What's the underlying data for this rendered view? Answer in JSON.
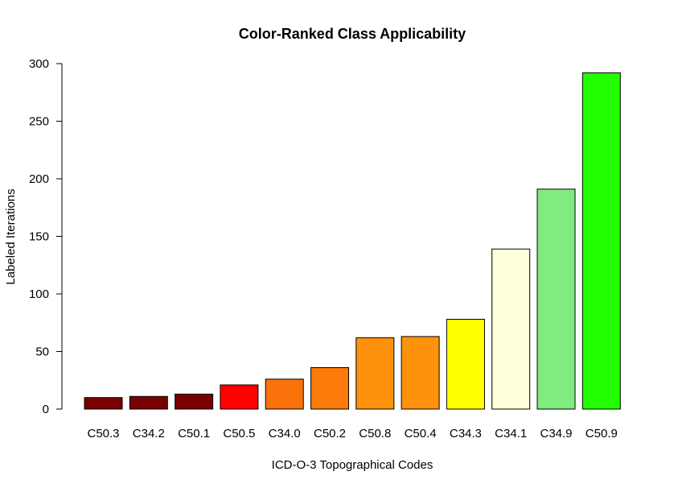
{
  "chart_data": {
    "type": "bar",
    "title": "Color-Ranked Class Applicability",
    "xlabel": "ICD-O-3 Topographical Codes",
    "ylabel": "Labeled Iterations",
    "ylim": [
      0,
      300
    ],
    "yticks": [
      0,
      50,
      100,
      150,
      200,
      250,
      300
    ],
    "grid": false,
    "categories": [
      "C50.3",
      "C34.2",
      "C50.1",
      "C50.5",
      "C34.0",
      "C50.2",
      "C50.8",
      "C50.4",
      "C34.3",
      "C34.1",
      "C34.9",
      "C50.9"
    ],
    "values": [
      10,
      11,
      13,
      21,
      26,
      36,
      62,
      63,
      78,
      139,
      191,
      292
    ],
    "colors": [
      "#7a0000",
      "#7a0000",
      "#7a0000",
      "#ff0000",
      "#f9720a",
      "#fc7b0b",
      "#ff920d",
      "#ff920d",
      "#ffff00",
      "#ffffdc",
      "#80eb7e",
      "#22ff00"
    ]
  }
}
